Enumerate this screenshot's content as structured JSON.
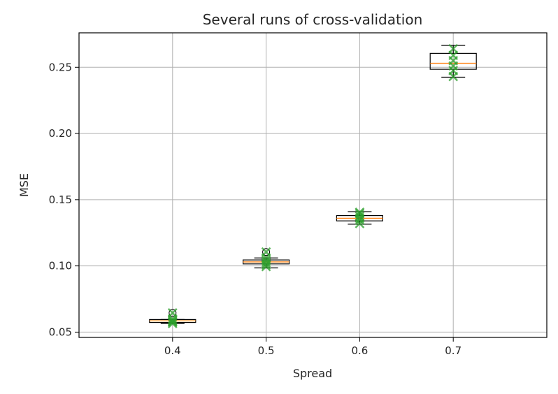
{
  "chart_data": {
    "type": "boxplot",
    "title": "Several runs of cross-validation",
    "xlabel": "Spread",
    "ylabel": "MSE",
    "xlim": [
      0.3,
      0.8
    ],
    "ylim": [
      0.046,
      0.276
    ],
    "xticks": [
      "0.4",
      "0.5",
      "0.6",
      "0.7"
    ],
    "yticks": [
      "0.05",
      "0.10",
      "0.15",
      "0.20",
      "0.25"
    ],
    "grid": true,
    "boxes": [
      {
        "x": 0.4,
        "whisker_low": 0.0565,
        "q1": 0.0573,
        "median": 0.0585,
        "q3": 0.0595,
        "whisker_high": 0.0595,
        "fliers": [
          0.0645
        ],
        "points": [
          0.0565,
          0.0575,
          0.058,
          0.0588,
          0.06,
          0.0645
        ]
      },
      {
        "x": 0.5,
        "whisker_low": 0.0985,
        "q1": 0.1015,
        "median": 0.103,
        "q3": 0.1045,
        "whisker_high": 0.106,
        "fliers": [
          0.1105
        ],
        "points": [
          0.0995,
          0.101,
          0.1025,
          0.104,
          0.106,
          0.1105
        ]
      },
      {
        "x": 0.6,
        "whisker_low": 0.1315,
        "q1": 0.134,
        "median": 0.136,
        "q3": 0.138,
        "whisker_high": 0.141,
        "fliers": [],
        "points": [
          0.132,
          0.1345,
          0.136,
          0.1375,
          0.1395,
          0.1405
        ]
      },
      {
        "x": 0.7,
        "whisker_low": 0.2425,
        "q1": 0.2485,
        "median": 0.253,
        "q3": 0.2605,
        "whisker_high": 0.2665,
        "fliers": [],
        "points": [
          0.243,
          0.2475,
          0.251,
          0.255,
          0.259,
          0.264
        ]
      }
    ]
  },
  "colors": {
    "box": "#000000",
    "median": "#ff7f0e",
    "points": "#2ca02c",
    "grid": "#b0b0b0",
    "axes": "#000000"
  }
}
